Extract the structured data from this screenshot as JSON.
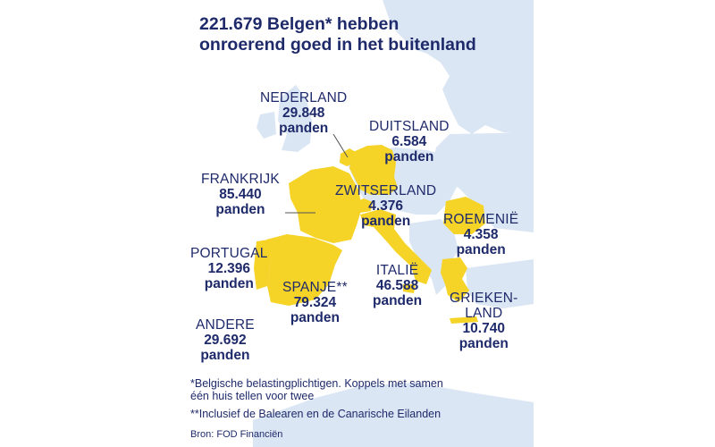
{
  "title": {
    "line1": "221.679 Belgen* hebben",
    "line2": "onroerend goed in het buitenland"
  },
  "colors": {
    "sea": "#ffffff",
    "land": "#dbe6f4",
    "highlight": "#f5d327",
    "text": "#1f2a6b"
  },
  "countries": [
    {
      "id": "nederland",
      "name": "NEDERLAND",
      "value": "29.848",
      "unit": "panden"
    },
    {
      "id": "duitsland",
      "name": "DUITSLAND",
      "value": "6.584",
      "unit": "panden"
    },
    {
      "id": "frankrijk",
      "name": "FRANKRIJK",
      "value": "85.440",
      "unit": "panden"
    },
    {
      "id": "zwitserland",
      "name": "ZWITSERLAND",
      "value": "4.376",
      "unit": "panden"
    },
    {
      "id": "roemenie",
      "name": "ROEMENIË",
      "value": "4.358",
      "unit": "panden"
    },
    {
      "id": "portugal",
      "name": "PORTUGAL",
      "value": "12.396",
      "unit": "panden"
    },
    {
      "id": "spanje",
      "name": "SPANJE**",
      "value": "79.324",
      "unit": "panden"
    },
    {
      "id": "italie",
      "name": "ITALIË",
      "value": "46.588",
      "unit": "panden"
    },
    {
      "id": "griekenland",
      "name": "GRIEKEN-\nLAND",
      "value": "10.740",
      "unit": "panden"
    },
    {
      "id": "andere",
      "name": "ANDERE",
      "value": "29.692",
      "unit": "panden"
    }
  ],
  "footnotes": {
    "note1_line1": "*Belgische belastingplichtigen. Koppels met samen",
    "note1_line2": "één huis tellen voor twee",
    "note2": "**Inclusief de Balearen en de Canarische Eilanden"
  },
  "source": "Bron: FOD Financiën"
}
